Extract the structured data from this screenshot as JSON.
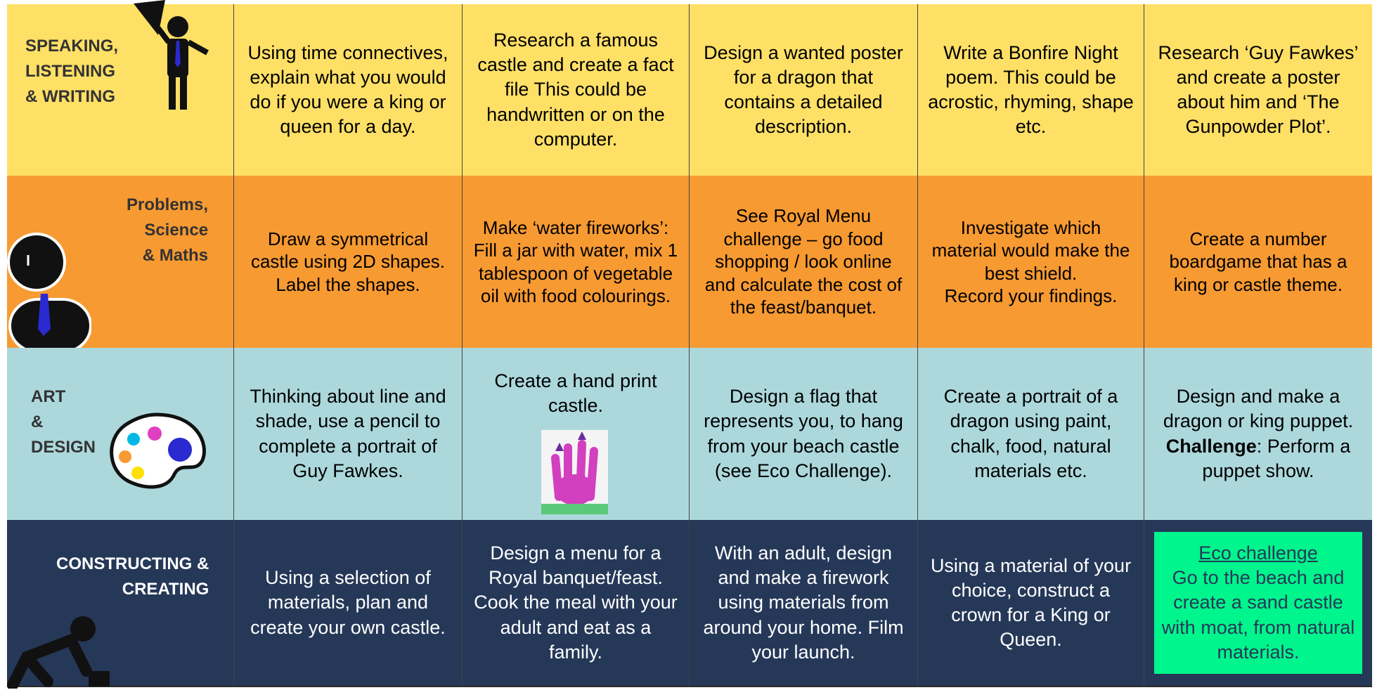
{
  "rows": [
    {
      "label": "SPEAKING,\nLISTENING\n& WRITING",
      "cells": [
        "Using time connectives, explain what you would do if you were a king or queen for a day.",
        "Research a famous castle and create a fact file This could be handwritten or on the computer.",
        "Design a wanted poster for a dragon that contains a detailed description.",
        "Write a Bonfire Night poem. This could be acrostic, rhyming, shape etc.",
        "Research ‘Guy Fawkes’ and create a poster about him and ‘The Gunpowder Plot’."
      ]
    },
    {
      "label": "Problems,\nScience\n& Maths",
      "cells": [
        "Draw a symmetrical castle using 2D shapes. Label the shapes.",
        "Make ‘water fireworks’: Fill a jar with water, mix 1 tablespoon of vegetable oil with food colourings.",
        "See Royal Menu challenge – go food shopping / look online and calculate the cost of the feast/banquet.",
        "Investigate which material would make the best shield.\nRecord your findings.",
        "Create a number boardgame that has a king or castle theme."
      ]
    },
    {
      "label": "ART\n&\nDESIGN",
      "cells": [
        "Thinking about line and shade, use a pencil to complete a portrait of Guy Fawkes.",
        "Create a hand print castle.",
        "Design a flag that represents you, to hang from your beach castle (see Eco Challenge).",
        "Create a portrait of a dragon using paint, chalk, food, natural materials etc.",
        {
          "text": "Design and make a dragon or king puppet.",
          "bold": "Challenge",
          "rest": ": Perform a puppet show."
        }
      ]
    },
    {
      "label": "CONSTRUCTING &\nCREATING",
      "cells": [
        "Using a selection of materials, plan and create your own castle.",
        "Design a menu for a Royal banquet/feast. Cook the meal with your adult and eat as a family.",
        "With an adult, design and make a firework using materials from around your home. Film your launch.",
        "Using a material of your choice, construct a crown for a King or Queen.",
        {
          "title": "Eco challenge",
          "text": "Go to the beach and create a sand castle with moat, from natural materials."
        }
      ]
    }
  ]
}
